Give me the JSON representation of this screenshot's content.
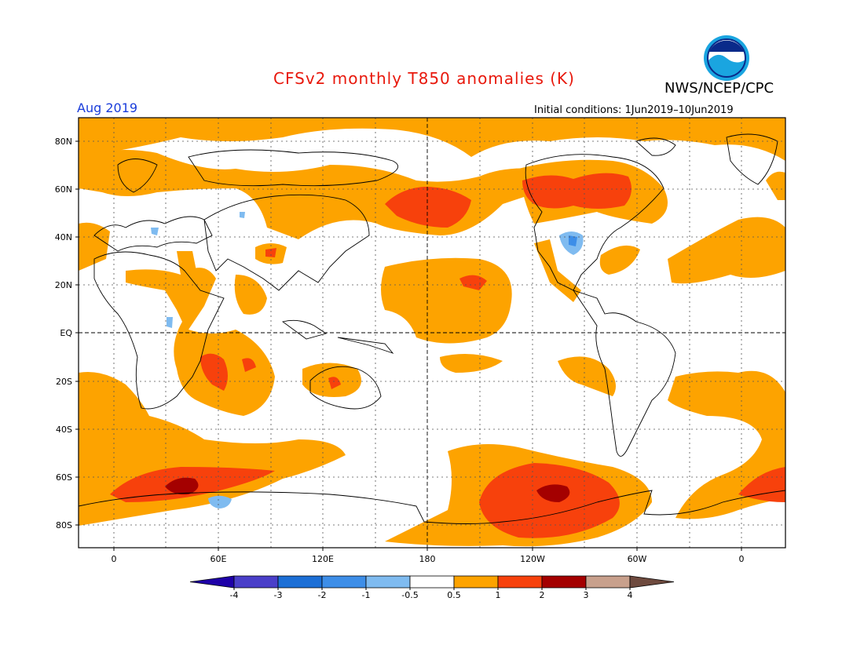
{
  "title": "CFSv2 monthly T850 anomalies (K)",
  "agency": "NWS/NCEP/CPC",
  "logo_text": "NOAA",
  "valid_month": "Aug 2019",
  "initial_conditions": "Initial conditions: 1Jun2019–10Jun2019",
  "lat_labels": [
    "80N",
    "60N",
    "40N",
    "20N",
    "EQ",
    "20S",
    "40S",
    "60S",
    "80S"
  ],
  "lon_labels": [
    "0",
    "60E",
    "120E",
    "180",
    "120W",
    "60W",
    "0"
  ],
  "colorbar": {
    "labels": [
      "-4",
      "-3",
      "-2",
      "-1",
      "-0.5",
      "0.5",
      "1",
      "2",
      "3",
      "4"
    ],
    "colors": [
      "#1e00a8",
      "#4a3fc9",
      "#1c6fd6",
      "#3d8ee8",
      "#7fbbf0",
      "#ffffff",
      "#fda300",
      "#f7410c",
      "#a40000",
      "#c8a08c",
      "#6e4a3e"
    ],
    "units": "K"
  }
}
